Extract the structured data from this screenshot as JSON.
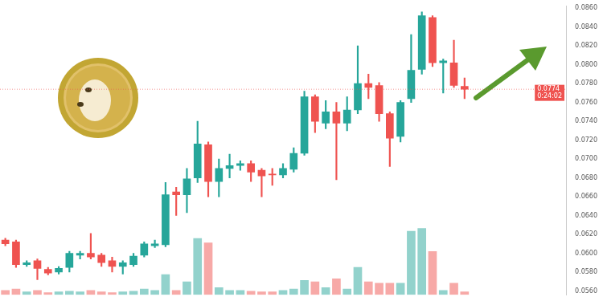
{
  "chart_data": {
    "type": "candlestick",
    "categories": [
      null,
      null,
      null,
      null,
      null,
      null,
      null,
      null,
      null,
      null,
      null,
      null,
      null,
      null,
      null,
      null,
      null,
      null,
      null,
      null,
      null,
      null,
      null,
      null,
      null,
      null,
      null,
      null,
      null,
      null,
      null,
      null,
      null,
      null,
      null,
      null,
      null,
      null,
      null,
      null,
      null,
      null,
      null,
      null,
      null,
      null,
      null,
      null,
      null,
      null,
      null,
      null,
      null
    ],
    "series": [
      {
        "type": "candlestick",
        "open": [
          0.0614,
          0.0612,
          0.0588,
          0.0592,
          0.0583,
          0.058,
          0.0585,
          0.0598,
          0.06,
          0.0598,
          0.0592,
          0.0586,
          0.0588,
          0.0598,
          0.0608,
          0.0609,
          0.0665,
          0.0662,
          0.068,
          0.0715,
          0.0676,
          0.069,
          0.0693,
          0.0695,
          0.0688,
          0.0684,
          0.0683,
          0.0689,
          0.0706,
          0.0766,
          0.0738,
          0.075,
          0.0738,
          0.0752,
          0.078,
          0.0778,
          0.0748,
          0.0724,
          0.0764,
          0.0795,
          0.085,
          0.0802,
          0.0802,
          0.0777,
          null,
          null,
          null,
          null,
          null,
          null,
          null,
          null,
          null
        ],
        "high": [
          0.0616,
          0.0614,
          0.0592,
          0.0594,
          0.0585,
          0.0586,
          0.0602,
          0.0602,
          0.0621,
          0.06,
          0.0596,
          0.0592,
          0.06,
          0.0612,
          0.0614,
          0.0675,
          0.067,
          0.069,
          0.074,
          0.0718,
          0.07,
          0.0705,
          0.0698,
          0.0698,
          0.069,
          0.069,
          0.0695,
          0.0712,
          0.0772,
          0.0768,
          0.0762,
          0.076,
          0.0766,
          0.082,
          0.079,
          0.0781,
          0.075,
          0.0762,
          0.0832,
          0.0856,
          0.0852,
          0.0806,
          0.0826,
          0.0786,
          null,
          null,
          null,
          null,
          null,
          null,
          null,
          null,
          null
        ],
        "low": [
          0.0608,
          0.0585,
          0.0586,
          0.0572,
          0.0577,
          0.0578,
          0.058,
          0.0594,
          0.0594,
          0.0586,
          0.058,
          0.0578,
          0.0586,
          0.0596,
          0.0606,
          0.0607,
          0.064,
          0.0643,
          0.0675,
          0.066,
          0.066,
          0.068,
          0.0688,
          0.0676,
          0.066,
          0.0672,
          0.068,
          0.0686,
          0.0704,
          0.0728,
          0.0732,
          0.0678,
          0.073,
          0.0748,
          0.0764,
          0.074,
          0.0692,
          0.0718,
          0.076,
          0.079,
          0.0798,
          0.077,
          0.0776,
          0.0764,
          null,
          null,
          null,
          null,
          null,
          null,
          null,
          null,
          null
        ],
        "close": [
          0.061,
          0.0588,
          0.059,
          0.0584,
          0.0579,
          0.0584,
          0.06,
          0.06,
          0.0596,
          0.059,
          0.0586,
          0.059,
          0.0597,
          0.061,
          0.061,
          0.0662,
          0.0662,
          0.0679,
          0.0716,
          0.0676,
          0.069,
          0.0693,
          0.0695,
          0.0686,
          0.0682,
          0.0683,
          0.069,
          0.0706,
          0.0766,
          0.074,
          0.075,
          0.0738,
          0.0752,
          0.078,
          0.0776,
          0.0748,
          0.0722,
          0.076,
          0.0794,
          0.0852,
          0.0802,
          0.0804,
          0.0778,
          0.0774,
          null,
          null,
          null,
          null,
          null,
          null,
          null,
          null,
          null
        ]
      },
      {
        "type": "bar",
        "axis": "y2",
        "values": [
          6,
          8,
          4,
          6,
          3,
          4,
          5,
          4,
          6,
          4,
          3,
          4,
          5,
          8,
          6,
          28,
          6,
          18,
          78,
          72,
          10,
          6,
          6,
          5,
          4,
          4,
          6,
          8,
          20,
          18,
          10,
          22,
          8,
          38,
          18,
          16,
          16,
          16,
          88,
          92,
          60,
          6,
          16,
          4,
          null,
          null,
          null,
          null,
          null,
          null,
          null,
          null,
          null
        ]
      }
    ],
    "ylim": [
      0.0556,
      0.0862
    ],
    "yticks": [
      {
        "value": 0.056,
        "label": "0.0560"
      },
      {
        "value": 0.058,
        "label": "0.0580"
      },
      {
        "value": 0.06,
        "label": "0.0600"
      },
      {
        "value": 0.062,
        "label": "0.0620"
      },
      {
        "value": 0.064,
        "label": "0.0640"
      },
      {
        "value": 0.066,
        "label": "0.0660"
      },
      {
        "value": 0.068,
        "label": "0.0680"
      },
      {
        "value": 0.07,
        "label": "0.0700"
      },
      {
        "value": 0.072,
        "label": "0.0720"
      },
      {
        "value": 0.074,
        "label": "0.0740"
      },
      {
        "value": 0.076,
        "label": "0.0760"
      },
      {
        "value": 0.078,
        "label": "0.0780"
      },
      {
        "value": 0.08,
        "label": "0.0800"
      },
      {
        "value": 0.082,
        "label": "0.0820"
      },
      {
        "value": 0.084,
        "label": "0.0840"
      },
      {
        "value": 0.086,
        "label": "0.0860"
      }
    ],
    "y2lim": [
      0,
      400
    ],
    "tick_labels": "y",
    "grid": false,
    "annotations": [
      {
        "text": "0.0774",
        "subtext": "0:24:02",
        "y": 0.0774
      }
    ]
  }
}
